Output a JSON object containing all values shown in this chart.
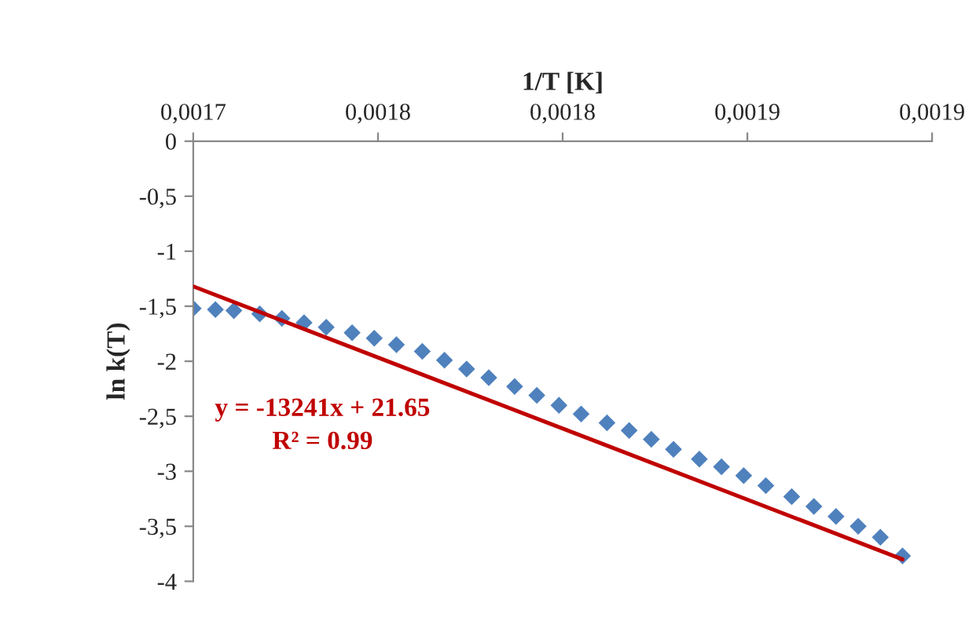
{
  "chart_data": {
    "type": "scatter",
    "xlabel": "1/T [K]",
    "ylabel": "ln k(T)",
    "xlim": [
      0.0017,
      0.0019
    ],
    "ylim": [
      -4,
      0
    ],
    "xticks": [
      {
        "value": 0.0017,
        "label": "0,0017"
      },
      {
        "value": 0.00175,
        "label": "0,0018"
      },
      {
        "value": 0.0018,
        "label": "0,0018"
      },
      {
        "value": 0.00185,
        "label": "0,0019"
      },
      {
        "value": 0.0019,
        "label": "0,0019"
      }
    ],
    "yticks": [
      0,
      {
        "value": -0.5,
        "label": "-0,5"
      },
      -1,
      {
        "value": -1.5,
        "label": "-1,5"
      },
      -2,
      {
        "value": -2.5,
        "label": "-2,5"
      },
      -3,
      {
        "value": -3.5,
        "label": "-3,5"
      },
      -4
    ],
    "marker": "diamond",
    "grid": false,
    "legend": false,
    "series": [
      {
        "color": "#4f81bd",
        "x": [
          0.0017,
          0.001706,
          0.001711,
          0.001718,
          0.001724,
          0.00173,
          0.001736,
          0.001743,
          0.001749,
          0.001755,
          0.001762,
          0.001768,
          0.001774,
          0.00178,
          0.001787,
          0.001793,
          0.001799,
          0.001805,
          0.001812,
          0.001818,
          0.001824,
          0.00183,
          0.001837,
          0.001843,
          0.001849,
          0.001855,
          0.001862,
          0.001868,
          0.001874,
          0.00188,
          0.001886,
          0.001892
        ],
        "values": [
          -1.52,
          -1.53,
          -1.54,
          -1.57,
          -1.61,
          -1.65,
          -1.69,
          -1.74,
          -1.79,
          -1.85,
          -1.91,
          -1.99,
          -2.07,
          -2.15,
          -2.23,
          -2.31,
          -2.4,
          -2.48,
          -2.56,
          -2.63,
          -2.71,
          -2.8,
          -2.89,
          -2.96,
          -3.04,
          -3.13,
          -3.23,
          -3.32,
          -3.41,
          -3.5,
          -3.6,
          -3.77
        ]
      },
      {
        "type": "line",
        "color": "#c00000",
        "marker": "none",
        "x": [
          0.0017,
          0.001892
        ],
        "values": [
          -1.32,
          -3.8
        ]
      }
    ],
    "annotations": [
      "y = -13241x + 21.65",
      "R² = 0.99"
    ]
  }
}
